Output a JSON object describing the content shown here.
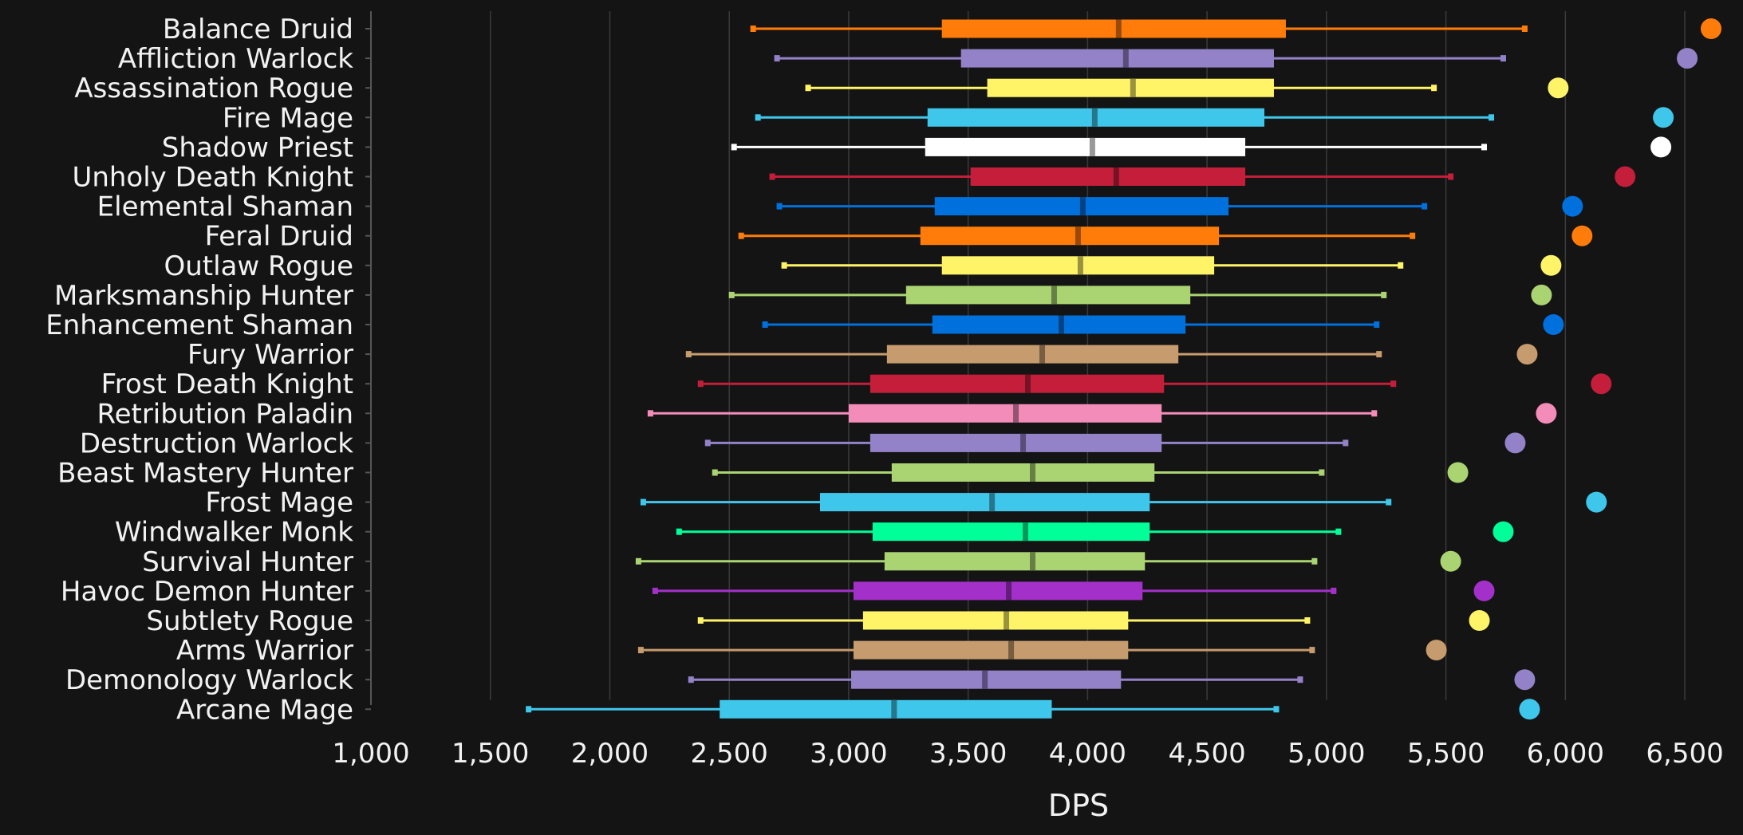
{
  "chart_data": {
    "type": "box",
    "title": "",
    "xlabel": "DPS",
    "ylabel": "",
    "xlim": [
      1000,
      6600
    ],
    "xticks": [
      1000,
      1500,
      2000,
      2500,
      3000,
      3500,
      4000,
      4500,
      5000,
      5500,
      6000,
      6500
    ],
    "xtick_labels": [
      "1,000",
      "1,500",
      "2,000",
      "2,500",
      "3,000",
      "3,500",
      "4,000",
      "4,500",
      "5,000",
      "5,500",
      "6,000",
      "6,500"
    ],
    "grid": "vertical",
    "legend": "none",
    "background": "#141414",
    "series": [
      {
        "name": "Balance Druid",
        "color": "#ff7c0a",
        "min": 2600,
        "q1": 3390,
        "median": 4130,
        "q3": 4830,
        "max": 5830,
        "top": 6610
      },
      {
        "name": "Affliction Warlock",
        "color": "#9482c9",
        "min": 2700,
        "q1": 3470,
        "median": 4160,
        "q3": 4780,
        "max": 5740,
        "top": 6510
      },
      {
        "name": "Assassination Rogue",
        "color": "#fff468",
        "min": 2830,
        "q1": 3580,
        "median": 4190,
        "q3": 4780,
        "max": 5450,
        "top": 5970
      },
      {
        "name": "Fire Mage",
        "color": "#3fc7eb",
        "min": 2620,
        "q1": 3330,
        "median": 4030,
        "q3": 4740,
        "max": 5690,
        "top": 6410
      },
      {
        "name": "Shadow Priest",
        "color": "#ffffff",
        "min": 2520,
        "q1": 3320,
        "median": 4020,
        "q3": 4660,
        "max": 5660,
        "top": 6400
      },
      {
        "name": "Unholy Death Knight",
        "color": "#c41e3a",
        "min": 2680,
        "q1": 3510,
        "median": 4120,
        "q3": 4660,
        "max": 5520,
        "top": 6250
      },
      {
        "name": "Elemental Shaman",
        "color": "#0070dd",
        "min": 2710,
        "q1": 3360,
        "median": 3980,
        "q3": 4590,
        "max": 5410,
        "top": 6030
      },
      {
        "name": "Feral Druid",
        "color": "#ff7c0a",
        "min": 2550,
        "q1": 3300,
        "median": 3960,
        "q3": 4550,
        "max": 5360,
        "top": 6070
      },
      {
        "name": "Outlaw Rogue",
        "color": "#fff468",
        "min": 2730,
        "q1": 3390,
        "median": 3970,
        "q3": 4530,
        "max": 5310,
        "top": 5940
      },
      {
        "name": "Marksmanship Hunter",
        "color": "#aad372",
        "min": 2510,
        "q1": 3240,
        "median": 3860,
        "q3": 4430,
        "max": 5240,
        "top": 5900
      },
      {
        "name": "Enhancement Shaman",
        "color": "#0070dd",
        "min": 2650,
        "q1": 3350,
        "median": 3890,
        "q3": 4410,
        "max": 5210,
        "top": 5950
      },
      {
        "name": "Fury Warrior",
        "color": "#c69b6d",
        "min": 2330,
        "q1": 3160,
        "median": 3810,
        "q3": 4380,
        "max": 5220,
        "top": 5840
      },
      {
        "name": "Frost Death Knight",
        "color": "#c41e3a",
        "min": 2380,
        "q1": 3090,
        "median": 3750,
        "q3": 4320,
        "max": 5280,
        "top": 6150
      },
      {
        "name": "Retribution Paladin",
        "color": "#f48cba",
        "min": 2170,
        "q1": 3000,
        "median": 3700,
        "q3": 4310,
        "max": 5200,
        "top": 5920
      },
      {
        "name": "Destruction Warlock",
        "color": "#9482c9",
        "min": 2410,
        "q1": 3090,
        "median": 3730,
        "q3": 4310,
        "max": 5080,
        "top": 5790
      },
      {
        "name": "Beast Mastery Hunter",
        "color": "#aad372",
        "min": 2440,
        "q1": 3180,
        "median": 3770,
        "q3": 4280,
        "max": 4980,
        "top": 5550
      },
      {
        "name": "Frost Mage",
        "color": "#3fc7eb",
        "min": 2140,
        "q1": 2880,
        "median": 3600,
        "q3": 4260,
        "max": 5260,
        "top": 6130
      },
      {
        "name": "Windwalker Monk",
        "color": "#00ff98",
        "min": 2290,
        "q1": 3100,
        "median": 3740,
        "q3": 4260,
        "max": 5050,
        "top": 5740
      },
      {
        "name": "Survival Hunter",
        "color": "#aad372",
        "min": 2120,
        "q1": 3150,
        "median": 3770,
        "q3": 4240,
        "max": 4950,
        "top": 5520
      },
      {
        "name": "Havoc Demon Hunter",
        "color": "#a330c9",
        "min": 2190,
        "q1": 3020,
        "median": 3670,
        "q3": 4230,
        "max": 5030,
        "top": 5660
      },
      {
        "name": "Subtlety Rogue",
        "color": "#fff468",
        "min": 2380,
        "q1": 3060,
        "median": 3660,
        "q3": 4170,
        "max": 4920,
        "top": 5640
      },
      {
        "name": "Arms Warrior",
        "color": "#c69b6d",
        "min": 2130,
        "q1": 3020,
        "median": 3680,
        "q3": 4170,
        "max": 4940,
        "top": 5460
      },
      {
        "name": "Demonology Warlock",
        "color": "#9482c9",
        "min": 2340,
        "q1": 3010,
        "median": 3570,
        "q3": 4140,
        "max": 4890,
        "top": 5830
      },
      {
        "name": "Arcane Mage",
        "color": "#3fc7eb",
        "min": 1660,
        "q1": 2460,
        "median": 3190,
        "q3": 3850,
        "max": 4790,
        "top": 5850
      }
    ]
  }
}
